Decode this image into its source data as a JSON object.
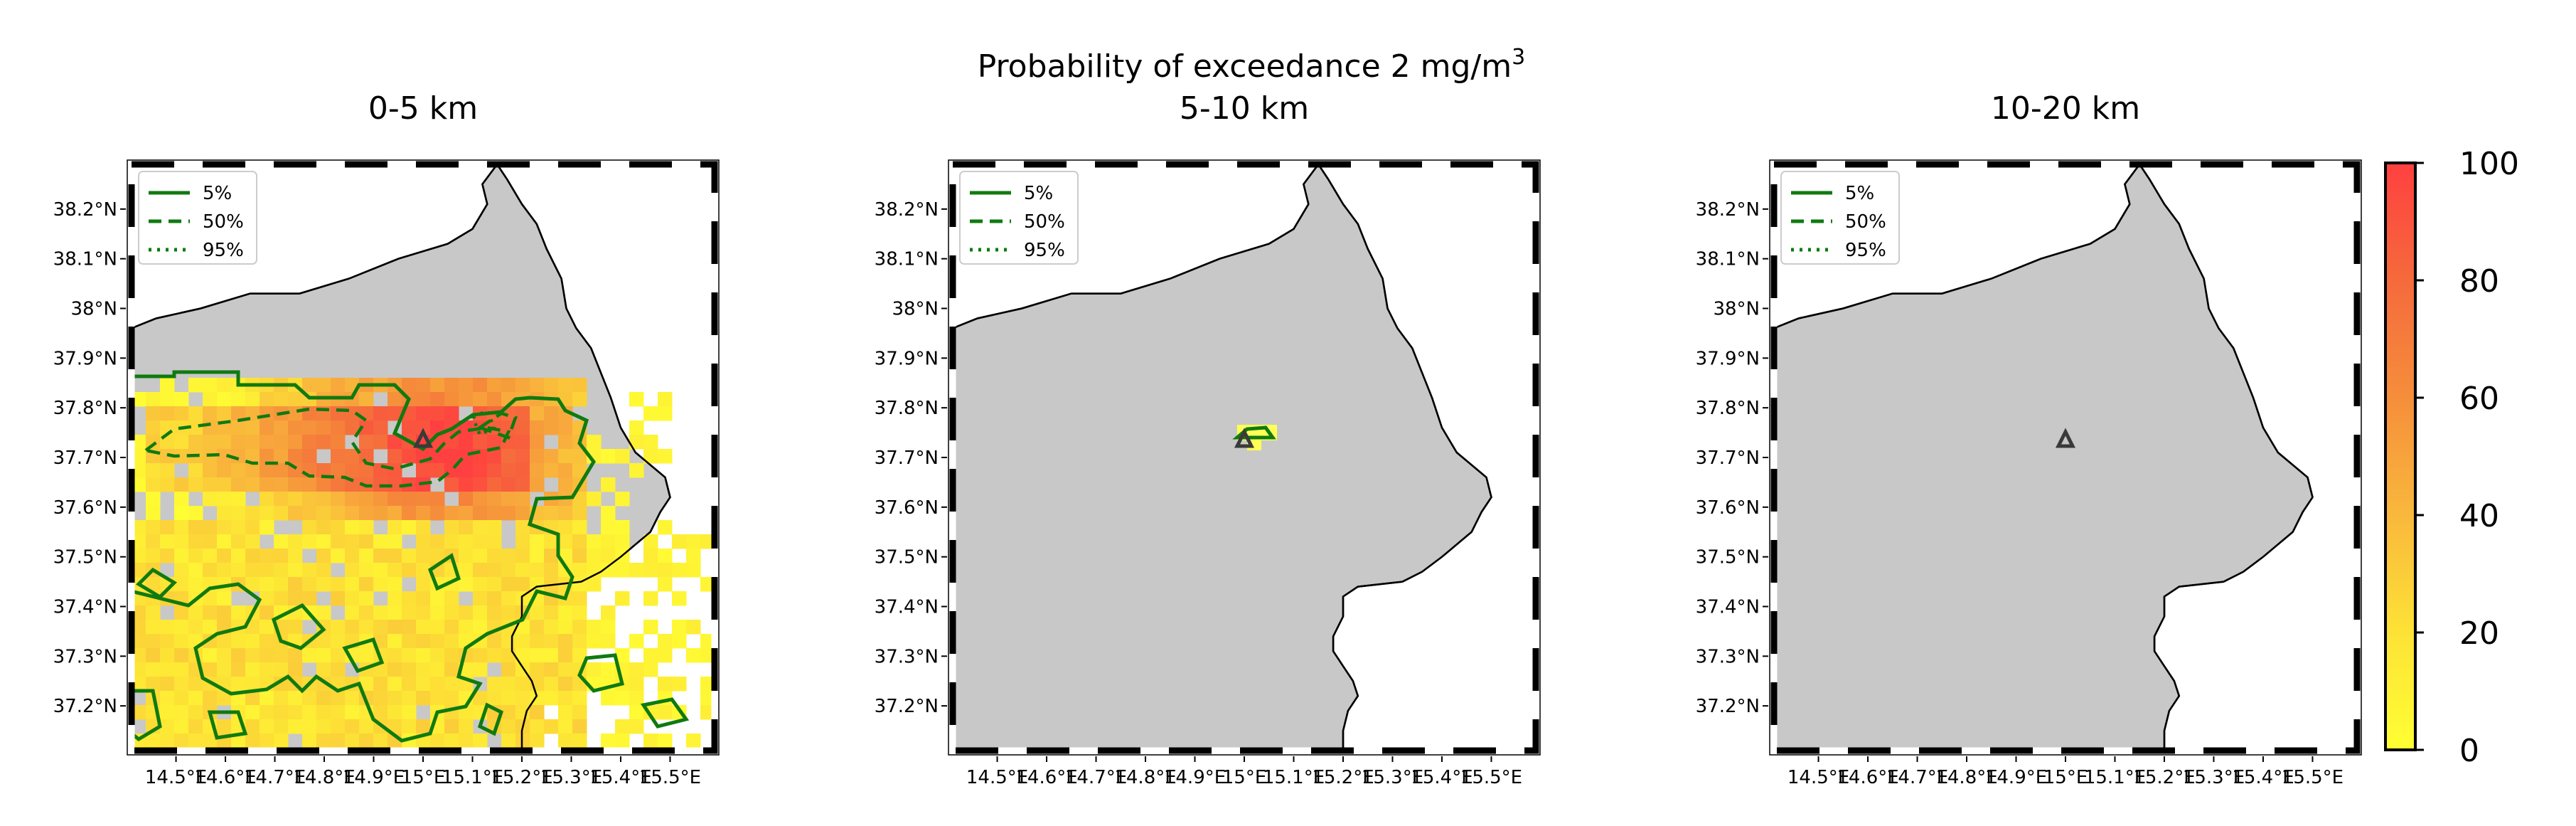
{
  "figure": {
    "suptitle_main": "Probability of exceedance 2 mg/m",
    "suptitle_sup": "3"
  },
  "panels": [
    {
      "title": "0-5 km"
    },
    {
      "title": "5-10 km"
    },
    {
      "title": "10-20 km"
    }
  ],
  "legend": {
    "items": [
      "5%",
      "50%",
      "95%"
    ]
  },
  "axes": {
    "lat_ticks": [
      {
        "v": 37.2,
        "label": "37.2°N"
      },
      {
        "v": 37.3,
        "label": "37.3°N"
      },
      {
        "v": 37.4,
        "label": "37.4°N"
      },
      {
        "v": 37.5,
        "label": "37.5°N"
      },
      {
        "v": 37.6,
        "label": "37.6°N"
      },
      {
        "v": 37.7,
        "label": "37.7°N"
      },
      {
        "v": 37.8,
        "label": "37.8°N"
      },
      {
        "v": 37.9,
        "label": "37.9°N"
      },
      {
        "v": 38.0,
        "label": "38°N"
      },
      {
        "v": 38.1,
        "label": "38.1°N"
      },
      {
        "v": 38.2,
        "label": "38.2°N"
      }
    ],
    "lon_ticks": [
      {
        "v": 14.5,
        "label": "14.5°E"
      },
      {
        "v": 14.6,
        "label": "14.6°E"
      },
      {
        "v": 14.7,
        "label": "14.7°E"
      },
      {
        "v": 14.8,
        "label": "14.8°E"
      },
      {
        "v": 14.9,
        "label": "14.9°E"
      },
      {
        "v": 15.0,
        "label": "15°E"
      },
      {
        "v": 15.1,
        "label": "15.1°E"
      },
      {
        "v": 15.2,
        "label": "15.2°E"
      },
      {
        "v": 15.3,
        "label": "15.3°E"
      },
      {
        "v": 15.4,
        "label": "15.4°E"
      },
      {
        "v": 15.5,
        "label": "15.5°E"
      }
    ]
  },
  "colorbar": {
    "ticks": [
      {
        "v": 0,
        "label": "0"
      },
      {
        "v": 20,
        "label": "20"
      },
      {
        "v": 40,
        "label": "40"
      },
      {
        "v": 60,
        "label": "60"
      },
      {
        "v": 80,
        "label": "80"
      },
      {
        "v": 100,
        "label": "100"
      }
    ],
    "color_low": "#ffff33",
    "color_high": "#ff4040"
  },
  "colors": {
    "land": "#c8c8c8",
    "sea": "#ffffff",
    "contour": "#0f7a0f",
    "coast": "#000000",
    "volcano": "#3a3a3a"
  },
  "icons": {
    "volcano": "triangle-icon"
  }
}
